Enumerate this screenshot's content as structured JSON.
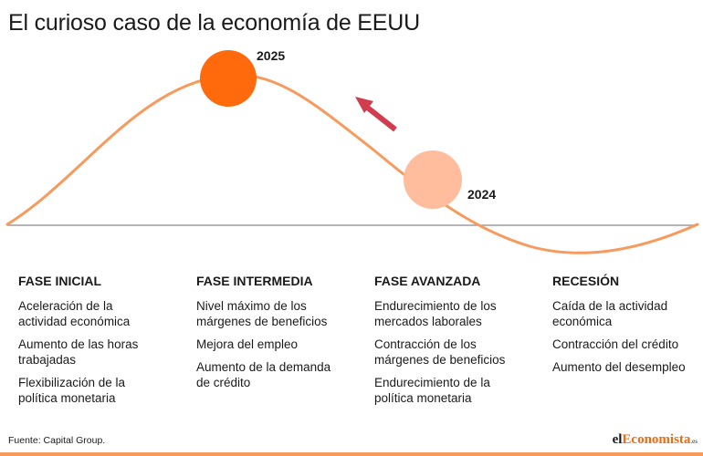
{
  "title": "El curioso caso de la economía de EEUU",
  "colors": {
    "curve": "#f79a5d",
    "baseline": "#9b9b9b",
    "circle_2025": "#ff6a0d",
    "circle_2024": "#ffbd9d",
    "arrow": "#d13c4e",
    "brand_accent": "#f26a0f"
  },
  "markers": {
    "year_2025": "2025",
    "year_2024": "2024"
  },
  "phases": [
    {
      "heading": "FASE INICIAL",
      "items": [
        "Aceleración de la actividad económica",
        "Aumento de las horas trabajadas",
        "Flexibilización de la política monetaria"
      ]
    },
    {
      "heading": "FASE INTERMEDIA",
      "items": [
        "Nivel máximo de los márgenes de beneficios",
        "Mejora del empleo",
        "Aumento de la demanda de crédito"
      ]
    },
    {
      "heading": "FASE AVANZADA",
      "items": [
        "Endurecimiento de los mercados laborales",
        "Contracción de los márgenes de beneficios",
        "Endurecimiento de la política monetaria"
      ]
    },
    {
      "heading": "RECESIÓN",
      "items": [
        "Caída de la actividad económica",
        "Contracción del crédito",
        "Aumento del desempleo"
      ]
    }
  ],
  "source": "Fuente: Capital Group.",
  "brand": {
    "part1": "el",
    "part2": "Economista",
    "part3": ".es"
  }
}
